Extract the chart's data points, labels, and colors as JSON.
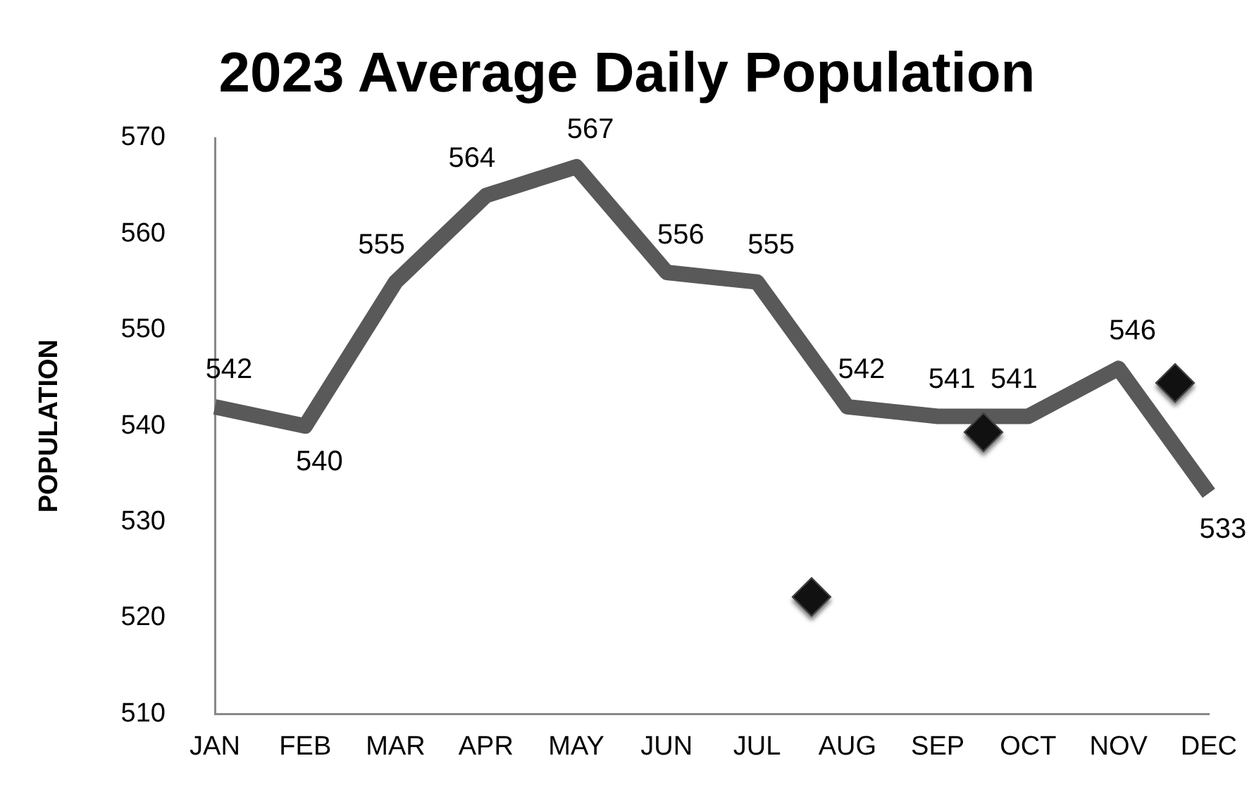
{
  "chart_data": {
    "type": "line",
    "title": "2023 Average Daily Population",
    "ylabel": "POPULATION",
    "categories": [
      "JAN",
      "FEB",
      "MAR",
      "APR",
      "MAY",
      "JUN",
      "JUL",
      "AUG",
      "SEP",
      "OCT",
      "NOV",
      "DEC"
    ],
    "series": [
      {
        "color": "#595959",
        "values": [
          542,
          540,
          555,
          564,
          567,
          556,
          555,
          542,
          541,
          541,
          546,
          533
        ]
      }
    ],
    "ylim": [
      510,
      570
    ],
    "yticks": [
      510,
      520,
      530,
      540,
      550,
      560,
      570
    ],
    "grid": false,
    "legend": false,
    "marker": "none",
    "line_style": "solid",
    "data_labels": true
  }
}
